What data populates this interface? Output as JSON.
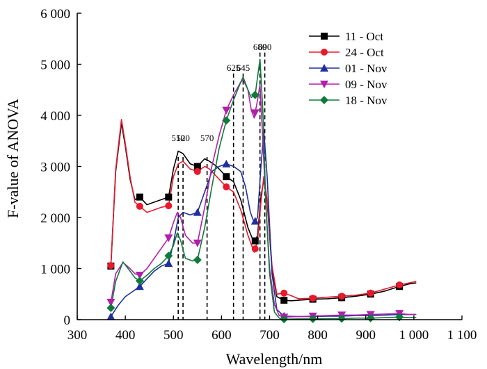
{
  "chart_data": {
    "type": "line",
    "xlabel": "Wavelength/nm",
    "ylabel": "F-value of ANOVA",
    "xlim": [
      300,
      1100
    ],
    "ylim": [
      0,
      6000
    ],
    "x_ticks": [
      300,
      400,
      500,
      600,
      700,
      800,
      900,
      1000,
      1100
    ],
    "x_tick_labels": [
      "300",
      "400",
      "500",
      "600",
      "700",
      "800",
      "900",
      "1 000",
      "1 100"
    ],
    "y_ticks": [
      0,
      1000,
      2000,
      3000,
      4000,
      5000,
      6000
    ],
    "y_tick_labels": [
      "0",
      "1 000",
      "2 000",
      "3 000",
      "4 000",
      "5 000",
      "6 000"
    ],
    "legend_position": "top-right",
    "reference_lines": [
      {
        "x": 510,
        "label": "510"
      },
      {
        "x": 520,
        "label": "520"
      },
      {
        "x": 570,
        "label": "570"
      },
      {
        "x": 625,
        "label": "625"
      },
      {
        "x": 645,
        "label": "645"
      },
      {
        "x": 680,
        "label": "680"
      },
      {
        "x": 690,
        "label": "690"
      }
    ],
    "series": [
      {
        "name": "11 - Oct",
        "color": "#000000",
        "marker": "square",
        "x": [
          370,
          380,
          392,
          400,
          410,
          420,
          430,
          445,
          460,
          475,
          490,
          500,
          510,
          520,
          535,
          550,
          565,
          575,
          590,
          610,
          625,
          640,
          655,
          668,
          675,
          682,
          688,
          695,
          705,
          715,
          730,
          745,
          760,
          790,
          820,
          850,
          880,
          910,
          940,
          970,
          990,
          1005
        ],
        "y": [
          1050,
          2900,
          3850,
          3400,
          2750,
          2350,
          2400,
          2250,
          2300,
          2350,
          2400,
          2950,
          3300,
          3250,
          3050,
          3000,
          3150,
          3100,
          3000,
          2800,
          2700,
          2350,
          1800,
          1500,
          1650,
          2400,
          2750,
          2300,
          1000,
          450,
          380,
          370,
          380,
          400,
          410,
          430,
          460,
          500,
          560,
          650,
          700,
          720
        ]
      },
      {
        "name": "24 - Oct",
        "color": "#e8192c",
        "marker": "circle",
        "x": [
          370,
          380,
          392,
          400,
          410,
          420,
          430,
          445,
          460,
          475,
          490,
          500,
          510,
          520,
          535,
          550,
          565,
          575,
          590,
          610,
          625,
          640,
          655,
          668,
          675,
          682,
          688,
          695,
          705,
          715,
          730,
          745,
          760,
          790,
          820,
          850,
          880,
          910,
          940,
          970,
          990,
          1005
        ],
        "y": [
          1060,
          2950,
          3920,
          3450,
          2800,
          2300,
          2220,
          2100,
          2150,
          2200,
          2230,
          2800,
          3050,
          3100,
          2950,
          2900,
          3000,
          2950,
          2800,
          2600,
          2500,
          2150,
          1650,
          1320,
          1550,
          2300,
          2800,
          2350,
          1050,
          500,
          520,
          470,
          410,
          420,
          440,
          460,
          480,
          520,
          600,
          680,
          720,
          750
        ]
      },
      {
        "name": "01 - Nov",
        "color": "#1f2f9c",
        "marker": "triangle",
        "x": [
          370,
          385,
          400,
          415,
          430,
          445,
          460,
          475,
          490,
          500,
          510,
          520,
          535,
          550,
          565,
          580,
          595,
          610,
          625,
          640,
          650,
          660,
          668,
          675,
          682,
          688,
          695,
          705,
          715,
          730,
          760,
          790,
          820,
          850,
          880,
          910,
          940,
          970,
          990,
          1005
        ],
        "y": [
          60,
          280,
          450,
          550,
          650,
          800,
          950,
          1050,
          1100,
          1500,
          2000,
          2100,
          2050,
          2100,
          2500,
          2900,
          3000,
          3050,
          3000,
          2900,
          2600,
          2100,
          1900,
          2000,
          3000,
          3700,
          2800,
          900,
          200,
          70,
          60,
          60,
          70,
          70,
          80,
          80,
          90,
          100,
          100,
          100
        ]
      },
      {
        "name": "09 - Nov",
        "color": "#b21faa",
        "marker": "triangle-down",
        "x": [
          370,
          380,
          395,
          410,
          420,
          430,
          445,
          460,
          475,
          490,
          500,
          508,
          515,
          525,
          540,
          550,
          565,
          580,
          595,
          610,
          625,
          640,
          645,
          655,
          662,
          668,
          675,
          680,
          686,
          692,
          700,
          710,
          720,
          730,
          760,
          790,
          820,
          850,
          880,
          910,
          940,
          970,
          990,
          1005
        ],
        "y": [
          340,
          900,
          1120,
          1000,
          900,
          870,
          1000,
          1200,
          1400,
          1600,
          1900,
          2100,
          2000,
          1650,
          1500,
          1500,
          2200,
          3000,
          3600,
          4100,
          4400,
          4650,
          4700,
          4500,
          4100,
          3950,
          4300,
          4600,
          3500,
          2300,
          1000,
          300,
          80,
          50,
          60,
          70,
          80,
          90,
          90,
          100,
          110,
          120,
          100,
          100
        ]
      },
      {
        "name": "18 - Nov",
        "color": "#0f7a3a",
        "marker": "diamond",
        "x": [
          370,
          380,
          395,
          410,
          420,
          430,
          445,
          460,
          475,
          490,
          500,
          508,
          515,
          525,
          540,
          550,
          565,
          580,
          595,
          610,
          625,
          640,
          645,
          655,
          662,
          670,
          675,
          680,
          686,
          692,
          700,
          710,
          720,
          730,
          760,
          790,
          820,
          850,
          880,
          910,
          940,
          970,
          990,
          1005
        ],
        "y": [
          230,
          750,
          1130,
          950,
          820,
          760,
          870,
          1000,
          1100,
          1250,
          1450,
          1700,
          1550,
          1200,
          1150,
          1170,
          1800,
          2600,
          3350,
          3900,
          4300,
          4650,
          4750,
          4500,
          4350,
          4400,
          4750,
          5100,
          4100,
          2300,
          900,
          150,
          30,
          10,
          15,
          15,
          20,
          20,
          30,
          30,
          40,
          50,
          40,
          40
        ]
      }
    ],
    "markers_at": {
      "11 - Oct": [
        370,
        430,
        490,
        550,
        610,
        670,
        730,
        790,
        850,
        910,
        970
      ],
      "24 - Oct": [
        370,
        430,
        490,
        550,
        610,
        670,
        730,
        790,
        850,
        910,
        970
      ],
      "01 - Nov": [
        370,
        430,
        490,
        550,
        610,
        670,
        730,
        790,
        850,
        910,
        970
      ],
      "09 - Nov": [
        370,
        430,
        490,
        550,
        610,
        670,
        730,
        790,
        850,
        910,
        970
      ],
      "18 - Nov": [
        370,
        430,
        490,
        550,
        610,
        670,
        730,
        790,
        850,
        910,
        970
      ]
    }
  }
}
